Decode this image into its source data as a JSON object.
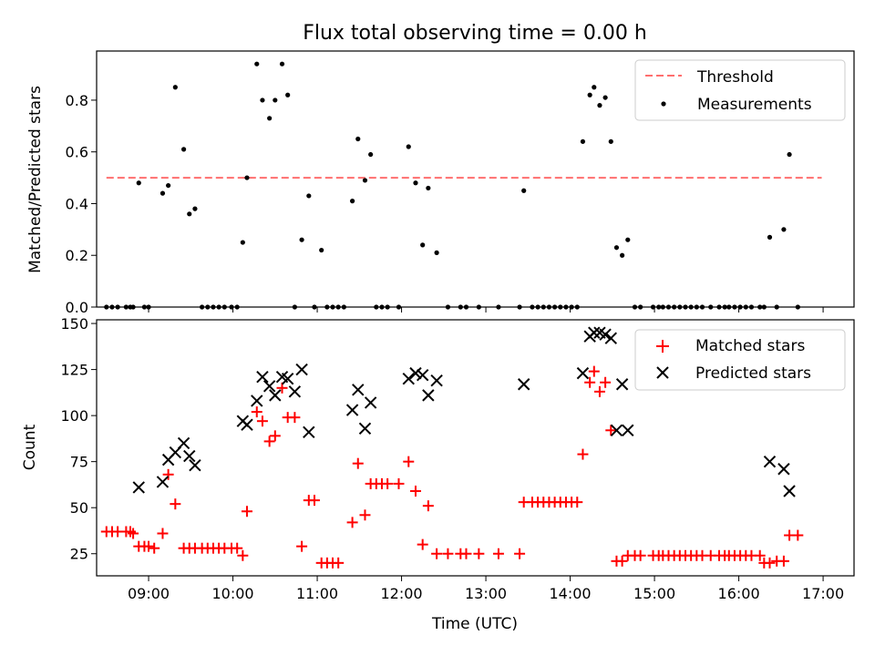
{
  "chart_data": [
    {
      "type": "scatter",
      "title": "Flux total observing time = 0.00 h",
      "xlabel": "",
      "ylabel": "Matched/Predicted stars",
      "xlim": [
        "08:23",
        "17:22"
      ],
      "ylim": [
        0,
        0.99
      ],
      "yticks": [
        0.0,
        0.2,
        0.4,
        0.6,
        0.8
      ],
      "yticks_labels": [
        "0.0",
        "0.2",
        "0.4",
        "0.6",
        "0.8"
      ],
      "xticks": [
        "09:00",
        "10:00",
        "11:00",
        "12:00",
        "13:00",
        "14:00",
        "15:00",
        "16:00",
        "17:00"
      ],
      "legend_position": "top-right",
      "legend": [
        "Threshold",
        "Measurements"
      ],
      "threshold": {
        "name": "Threshold",
        "value": 0.5,
        "x_start": "08:30",
        "x_end": "16:59",
        "color": "#ff6e6e",
        "style": "dashed"
      },
      "series": [
        {
          "name": "Measurements",
          "color": "#000000",
          "marker": "dot",
          "points": [
            [
              "08:30",
              0
            ],
            [
              "08:34",
              0
            ],
            [
              "08:38",
              0
            ],
            [
              "08:44",
              0
            ],
            [
              "08:47",
              0
            ],
            [
              "08:49",
              0
            ],
            [
              "08:53",
              0.48
            ],
            [
              "08:57",
              0
            ],
            [
              "09:00",
              0
            ],
            [
              "09:10",
              0.44
            ],
            [
              "09:14",
              0.47
            ],
            [
              "09:19",
              0.85
            ],
            [
              "09:25",
              0.61
            ],
            [
              "09:29",
              0.36
            ],
            [
              "09:33",
              0.38
            ],
            [
              "09:38",
              0
            ],
            [
              "09:42",
              0
            ],
            [
              "09:46",
              0
            ],
            [
              "09:50",
              0
            ],
            [
              "09:54",
              0
            ],
            [
              "09:59",
              0
            ],
            [
              "10:03",
              0
            ],
            [
              "10:07",
              0.25
            ],
            [
              "10:10",
              0.5
            ],
            [
              "10:17",
              0.94
            ],
            [
              "10:21",
              0.8
            ],
            [
              "10:26",
              0.73
            ],
            [
              "10:30",
              0.8
            ],
            [
              "10:35",
              0.94
            ],
            [
              "10:39",
              0.82
            ],
            [
              "10:44",
              0
            ],
            [
              "10:49",
              0.26
            ],
            [
              "10:54",
              0.43
            ],
            [
              "10:58",
              0
            ],
            [
              "11:03",
              0.22
            ],
            [
              "11:07",
              0
            ],
            [
              "11:11",
              0
            ],
            [
              "11:15",
              0
            ],
            [
              "11:19",
              0
            ],
            [
              "11:25",
              0.41
            ],
            [
              "11:29",
              0.65
            ],
            [
              "11:34",
              0.49
            ],
            [
              "11:38",
              0.59
            ],
            [
              "11:42",
              0
            ],
            [
              "11:46",
              0
            ],
            [
              "11:50",
              0
            ],
            [
              "11:58",
              0
            ],
            [
              "12:05",
              0.62
            ],
            [
              "12:10",
              0.48
            ],
            [
              "12:15",
              0.24
            ],
            [
              "12:19",
              0.46
            ],
            [
              "12:25",
              0.21
            ],
            [
              "12:33",
              0
            ],
            [
              "12:42",
              0
            ],
            [
              "12:46",
              0
            ],
            [
              "12:55",
              0
            ],
            [
              "13:09",
              0
            ],
            [
              "13:24",
              0
            ],
            [
              "13:27",
              0.45
            ],
            [
              "13:33",
              0
            ],
            [
              "13:37",
              0
            ],
            [
              "13:41",
              0
            ],
            [
              "13:45",
              0
            ],
            [
              "13:49",
              0
            ],
            [
              "13:53",
              0
            ],
            [
              "13:57",
              0
            ],
            [
              "14:01",
              0
            ],
            [
              "14:05",
              0
            ],
            [
              "14:09",
              0.64
            ],
            [
              "14:14",
              0.82
            ],
            [
              "14:17",
              0.85
            ],
            [
              "14:21",
              0.78
            ],
            [
              "14:25",
              0.81
            ],
            [
              "14:29",
              0.64
            ],
            [
              "14:33",
              0.23
            ],
            [
              "14:37",
              0.2
            ],
            [
              "14:41",
              0.26
            ],
            [
              "14:46",
              0
            ],
            [
              "14:50",
              0
            ],
            [
              "14:59",
              0
            ],
            [
              "15:03",
              0
            ],
            [
              "15:06",
              0
            ],
            [
              "15:10",
              0
            ],
            [
              "15:14",
              0
            ],
            [
              "15:18",
              0
            ],
            [
              "15:22",
              0
            ],
            [
              "15:26",
              0
            ],
            [
              "15:30",
              0
            ],
            [
              "15:34",
              0
            ],
            [
              "15:40",
              0
            ],
            [
              "15:46",
              0
            ],
            [
              "15:50",
              0
            ],
            [
              "15:53",
              0
            ],
            [
              "15:57",
              0
            ],
            [
              "16:01",
              0
            ],
            [
              "16:05",
              0
            ],
            [
              "16:09",
              0
            ],
            [
              "16:15",
              0
            ],
            [
              "16:18",
              0
            ],
            [
              "16:22",
              0.27
            ],
            [
              "16:27",
              0
            ],
            [
              "16:32",
              0.3
            ],
            [
              "16:36",
              0.59
            ],
            [
              "16:42",
              0
            ]
          ]
        }
      ]
    },
    {
      "type": "scatter",
      "title": "",
      "xlabel": "Time (UTC)",
      "ylabel": "Count",
      "xlim": [
        "08:23",
        "17:22"
      ],
      "ylim": [
        13,
        152
      ],
      "yticks": [
        25,
        50,
        75,
        100,
        125,
        150
      ],
      "yticks_labels": [
        "25",
        "50",
        "75",
        "100",
        "125",
        "150"
      ],
      "xticks": [
        "09:00",
        "10:00",
        "11:00",
        "12:00",
        "13:00",
        "14:00",
        "15:00",
        "16:00",
        "17:00"
      ],
      "xticks_labels": [
        "09:00",
        "10:00",
        "11:00",
        "12:00",
        "13:00",
        "14:00",
        "15:00",
        "16:00",
        "17:00"
      ],
      "legend_position": "top-right",
      "legend": [
        "Matched stars",
        "Predicted stars"
      ],
      "series": [
        {
          "name": "Matched stars",
          "color": "#ff0000",
          "marker": "plus",
          "points": [
            [
              "08:30",
              37
            ],
            [
              "08:34",
              37
            ],
            [
              "08:38",
              37
            ],
            [
              "08:44",
              37
            ],
            [
              "08:47",
              37
            ],
            [
              "08:49",
              36
            ],
            [
              "08:53",
              29
            ],
            [
              "08:57",
              29
            ],
            [
              "09:00",
              29
            ],
            [
              "09:04",
              28
            ],
            [
              "09:10",
              36
            ],
            [
              "09:14",
              68
            ],
            [
              "09:19",
              52
            ],
            [
              "09:25",
              28
            ],
            [
              "09:29",
              28
            ],
            [
              "09:33",
              28
            ],
            [
              "09:38",
              28
            ],
            [
              "09:42",
              28
            ],
            [
              "09:46",
              28
            ],
            [
              "09:50",
              28
            ],
            [
              "09:54",
              28
            ],
            [
              "09:59",
              28
            ],
            [
              "10:03",
              28
            ],
            [
              "10:07",
              24
            ],
            [
              "10:10",
              48
            ],
            [
              "10:17",
              102
            ],
            [
              "10:21",
              97
            ],
            [
              "10:26",
              86
            ],
            [
              "10:30",
              89
            ],
            [
              "10:35",
              115
            ],
            [
              "10:39",
              99
            ],
            [
              "10:44",
              99
            ],
            [
              "10:49",
              29
            ],
            [
              "10:54",
              54
            ],
            [
              "10:58",
              54
            ],
            [
              "11:03",
              20
            ],
            [
              "11:07",
              20
            ],
            [
              "11:11",
              20
            ],
            [
              "11:15",
              20
            ],
            [
              "11:25",
              42
            ],
            [
              "11:29",
              74
            ],
            [
              "11:34",
              46
            ],
            [
              "11:38",
              63
            ],
            [
              "11:42",
              63
            ],
            [
              "11:46",
              63
            ],
            [
              "11:50",
              63
            ],
            [
              "11:58",
              63
            ],
            [
              "12:05",
              75
            ],
            [
              "12:10",
              59
            ],
            [
              "12:15",
              30
            ],
            [
              "12:19",
              51
            ],
            [
              "12:25",
              25
            ],
            [
              "12:33",
              25
            ],
            [
              "12:42",
              25
            ],
            [
              "12:46",
              25
            ],
            [
              "12:55",
              25
            ],
            [
              "13:09",
              25
            ],
            [
              "13:24",
              25
            ],
            [
              "13:27",
              53
            ],
            [
              "13:33",
              53
            ],
            [
              "13:37",
              53
            ],
            [
              "13:41",
              53
            ],
            [
              "13:45",
              53
            ],
            [
              "13:49",
              53
            ],
            [
              "13:53",
              53
            ],
            [
              "13:57",
              53
            ],
            [
              "14:01",
              53
            ],
            [
              "14:05",
              53
            ],
            [
              "14:09",
              79
            ],
            [
              "14:14",
              118
            ],
            [
              "14:17",
              124
            ],
            [
              "14:21",
              113
            ],
            [
              "14:25",
              118
            ],
            [
              "14:29",
              92
            ],
            [
              "14:33",
              21
            ],
            [
              "14:37",
              21
            ],
            [
              "14:41",
              24
            ],
            [
              "14:46",
              24
            ],
            [
              "14:50",
              24
            ],
            [
              "14:59",
              24
            ],
            [
              "15:03",
              24
            ],
            [
              "15:06",
              24
            ],
            [
              "15:10",
              24
            ],
            [
              "15:14",
              24
            ],
            [
              "15:18",
              24
            ],
            [
              "15:22",
              24
            ],
            [
              "15:26",
              24
            ],
            [
              "15:30",
              24
            ],
            [
              "15:34",
              24
            ],
            [
              "15:40",
              24
            ],
            [
              "15:46",
              24
            ],
            [
              "15:50",
              24
            ],
            [
              "15:53",
              24
            ],
            [
              "15:57",
              24
            ],
            [
              "16:01",
              24
            ],
            [
              "16:05",
              24
            ],
            [
              "16:09",
              24
            ],
            [
              "16:15",
              24
            ],
            [
              "16:18",
              20
            ],
            [
              "16:22",
              20
            ],
            [
              "16:27",
              21
            ],
            [
              "16:32",
              21
            ],
            [
              "16:36",
              35
            ],
            [
              "16:42",
              35
            ]
          ]
        },
        {
          "name": "Predicted stars",
          "color": "#000000",
          "marker": "x",
          "points": [
            [
              "08:53",
              61
            ],
            [
              "09:10",
              64
            ],
            [
              "09:14",
              76
            ],
            [
              "09:19",
              80
            ],
            [
              "09:25",
              85
            ],
            [
              "09:29",
              78
            ],
            [
              "09:33",
              73
            ],
            [
              "10:07",
              97
            ],
            [
              "10:10",
              95
            ],
            [
              "10:17",
              108
            ],
            [
              "10:21",
              121
            ],
            [
              "10:26",
              116
            ],
            [
              "10:30",
              111
            ],
            [
              "10:35",
              121
            ],
            [
              "10:39",
              120
            ],
            [
              "10:44",
              113
            ],
            [
              "10:49",
              125
            ],
            [
              "10:54",
              91
            ],
            [
              "11:25",
              103
            ],
            [
              "11:29",
              114
            ],
            [
              "11:34",
              93
            ],
            [
              "11:38",
              107
            ],
            [
              "12:05",
              120
            ],
            [
              "12:10",
              123
            ],
            [
              "12:15",
              122
            ],
            [
              "12:19",
              111
            ],
            [
              "12:25",
              119
            ],
            [
              "13:27",
              117
            ],
            [
              "14:09",
              123
            ],
            [
              "14:14",
              143
            ],
            [
              "14:17",
              145
            ],
            [
              "14:21",
              145
            ],
            [
              "14:25",
              144
            ],
            [
              "14:29",
              142
            ],
            [
              "14:33",
              92
            ],
            [
              "14:37",
              117
            ],
            [
              "14:41",
              92
            ],
            [
              "16:22",
              75
            ],
            [
              "16:32",
              71
            ],
            [
              "16:36",
              59
            ]
          ]
        }
      ]
    }
  ]
}
